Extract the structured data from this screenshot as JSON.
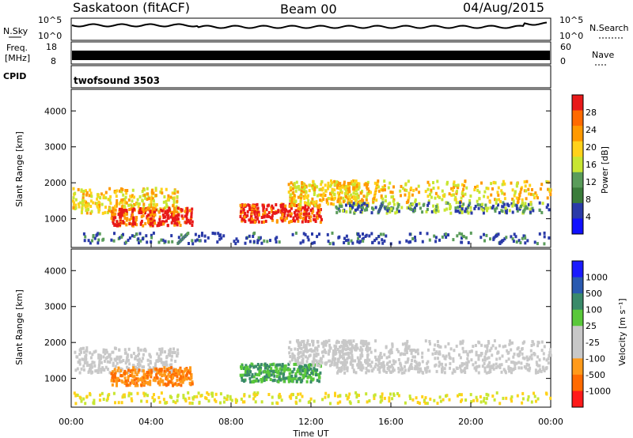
{
  "header": {
    "station": "Saskatoon (fitACF)",
    "beam": "Beam 00",
    "date": "04/Aug/2015"
  },
  "noise_panel": {
    "left_label": "N.Sky",
    "left_ticks": [
      "10^5",
      "10^0"
    ],
    "right_ticks": [
      "10^5",
      "10^0"
    ],
    "right_label": "N.Search"
  },
  "freq_panel": {
    "left_label_1": "Freq.",
    "left_label_2": "[MHz]",
    "left_ticks": [
      "18",
      "8"
    ],
    "right_ticks": [
      "60",
      "0"
    ],
    "right_label": "Nave"
  },
  "cpid_panel": {
    "left_label": "CPID",
    "program": "twofsound 3503"
  },
  "chart_data": [
    {
      "type": "heatmap",
      "name": "power",
      "xlabel": "",
      "ylabel": "Slant Range [km]",
      "ylim": [
        200,
        4600
      ],
      "yticks": [
        "1000",
        "2000",
        "3000",
        "4000"
      ],
      "colorbar": {
        "label": "Power [dB]",
        "ticks": [
          "28",
          "24",
          "20",
          "16",
          "12",
          "8",
          "4"
        ],
        "colors": [
          "#e81919",
          "#ff6a00",
          "#ff9900",
          "#ffd21a",
          "#c8e632",
          "#5a9c5a",
          "#3a7c3a",
          "#2a3aa8",
          "#1010ff"
        ]
      }
    },
    {
      "type": "heatmap",
      "name": "velocity",
      "xlabel": "Time UT",
      "ylabel": "Slant Range [km]",
      "ylim": [
        200,
        4600
      ],
      "yticks": [
        "1000",
        "2000",
        "3000",
        "4000"
      ],
      "xticks": [
        "00:00",
        "04:00",
        "08:00",
        "12:00",
        "16:00",
        "20:00",
        "00:00"
      ],
      "colorbar": {
        "label": "Velocity [m s⁻¹]",
        "ticks": [
          "1000",
          "500",
          "100",
          "25",
          "-25",
          "-100",
          "-500",
          "-1000"
        ],
        "colors": [
          "#1a1aff",
          "#2a5ab0",
          "#3a8a6a",
          "#5ac83a",
          "#c8c8c8",
          "#c8c8c8",
          "#ff9a1a",
          "#ff6a00",
          "#ff1a1a"
        ]
      }
    }
  ]
}
